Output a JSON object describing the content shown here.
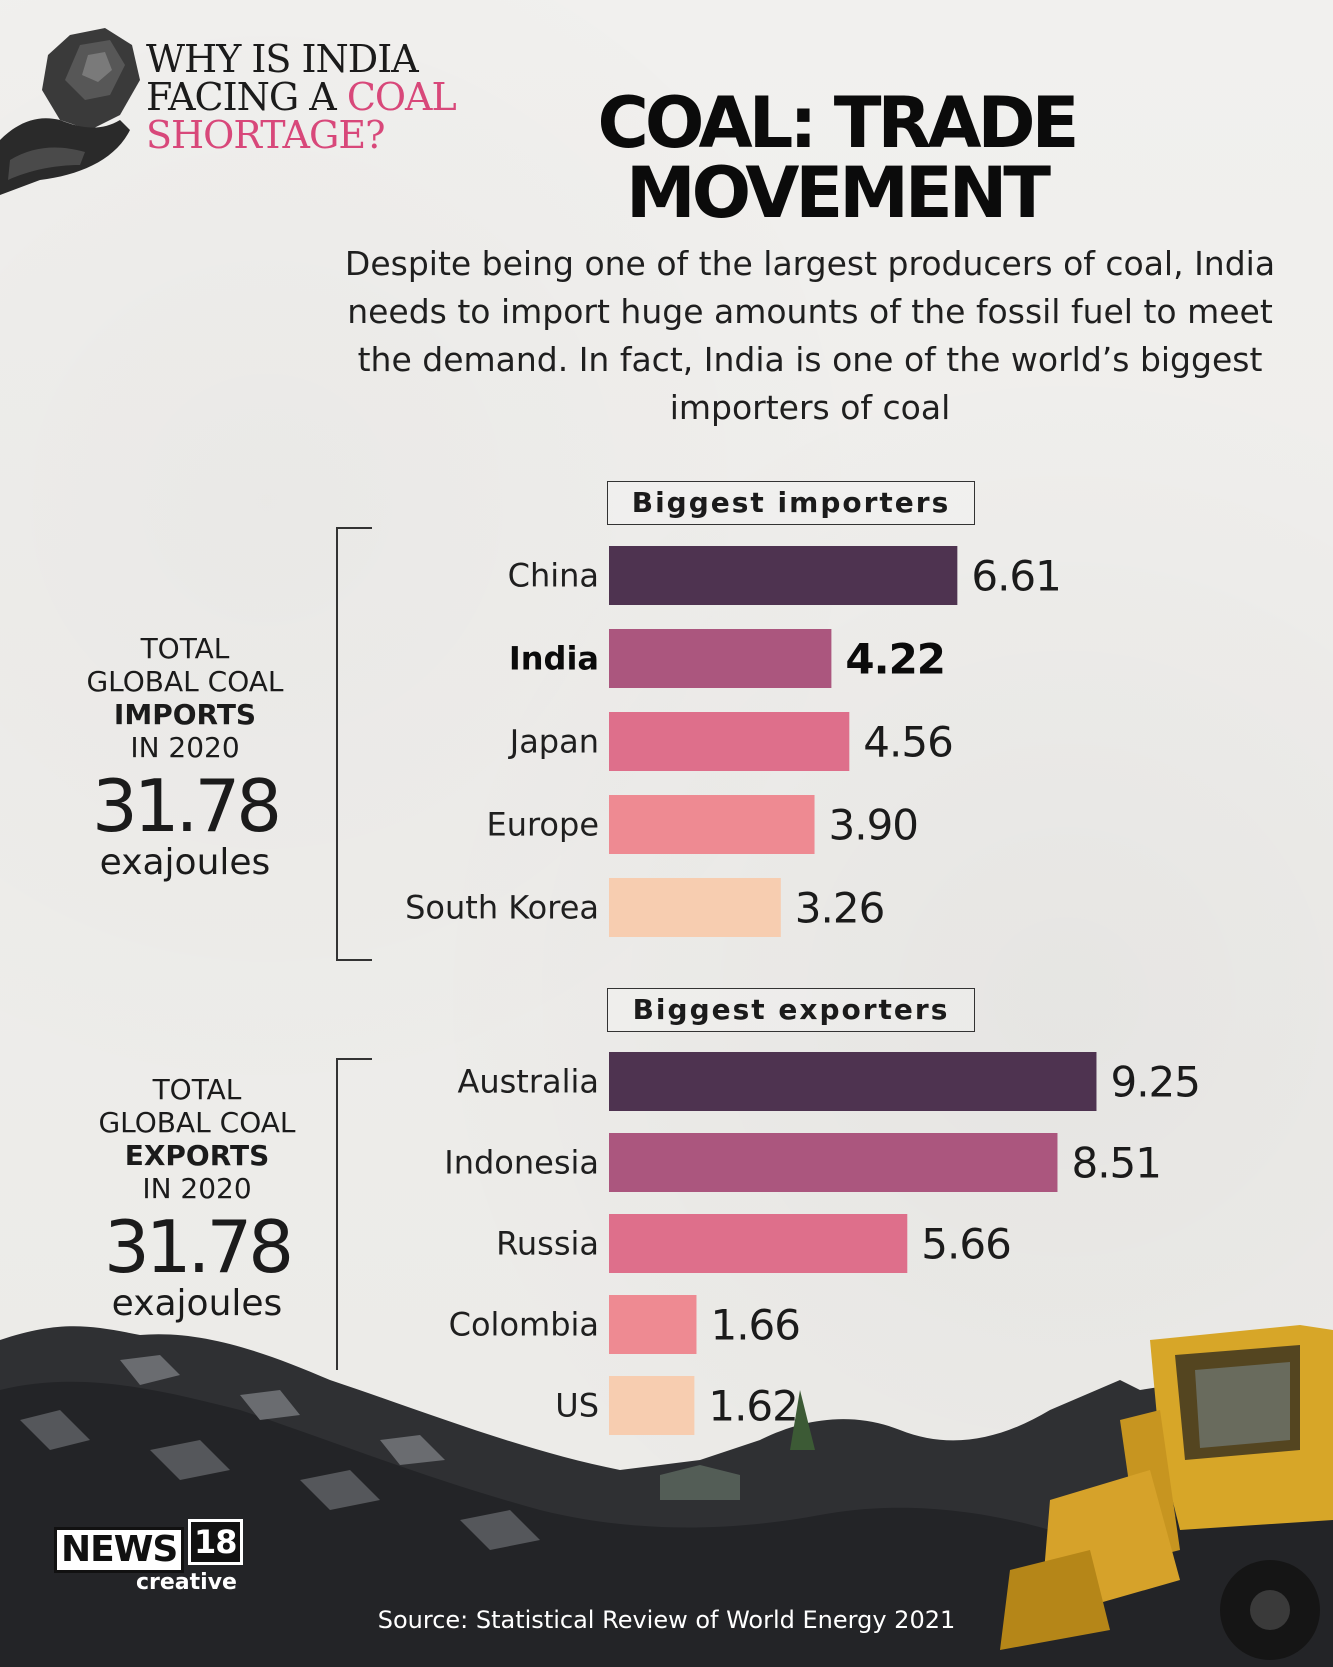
{
  "header": {
    "kicker_line1": "WHY IS INDIA",
    "kicker_line2_a": "FACING A ",
    "kicker_line2_b": "COAL",
    "kicker_line3": "SHORTAGE?",
    "title_line1": "COAL: TRADE",
    "title_line2": "MOVEMENT",
    "description": "Despite being one of the largest producers of coal, India needs to import huge amounts of the fossil fuel to meet the demand. In fact, India is one of the world’s biggest importers of coal"
  },
  "imports_summary": {
    "line1": "TOTAL",
    "line2": "GLOBAL COAL",
    "line3": "IMPORTS",
    "line4": "IN 2020",
    "value": "31.78",
    "unit": "exajoules"
  },
  "exports_summary": {
    "line1": "TOTAL",
    "line2": "GLOBAL COAL",
    "line3": "EXPORTS",
    "line4": "IN 2020",
    "value": "31.78",
    "unit": "exajoules"
  },
  "colors": {
    "rank1": "#4e3350",
    "rank2": "#ab567e",
    "rank3": "#de6f8b",
    "rank4": "#ee8a92",
    "rank5": "#f7cdb0"
  },
  "chart_data": [
    {
      "type": "bar",
      "orientation": "horizontal",
      "title": "Biggest importers",
      "categories": [
        "China",
        "India",
        "Japan",
        "Europe",
        "South Korea"
      ],
      "values": [
        6.61,
        4.22,
        4.56,
        3.9,
        3.26
      ],
      "value_labels": [
        "6.61",
        "4.22",
        "4.56",
        "3.90",
        "3.26"
      ],
      "highlight": "India"
    },
    {
      "type": "bar",
      "orientation": "horizontal",
      "title": "Biggest exporters",
      "categories": [
        "Australia",
        "Indonesia",
        "Russia",
        "Colombia",
        "US"
      ],
      "values": [
        9.25,
        8.51,
        5.66,
        1.66,
        1.62
      ],
      "value_labels": [
        "9.25",
        "8.51",
        "5.66",
        "1.66",
        "1.62"
      ]
    }
  ],
  "footer": {
    "logo_news": "NEWS",
    "logo_18": "18",
    "logo_creative": "creative",
    "source": "Source: Statistical Review of World Energy 2021"
  }
}
